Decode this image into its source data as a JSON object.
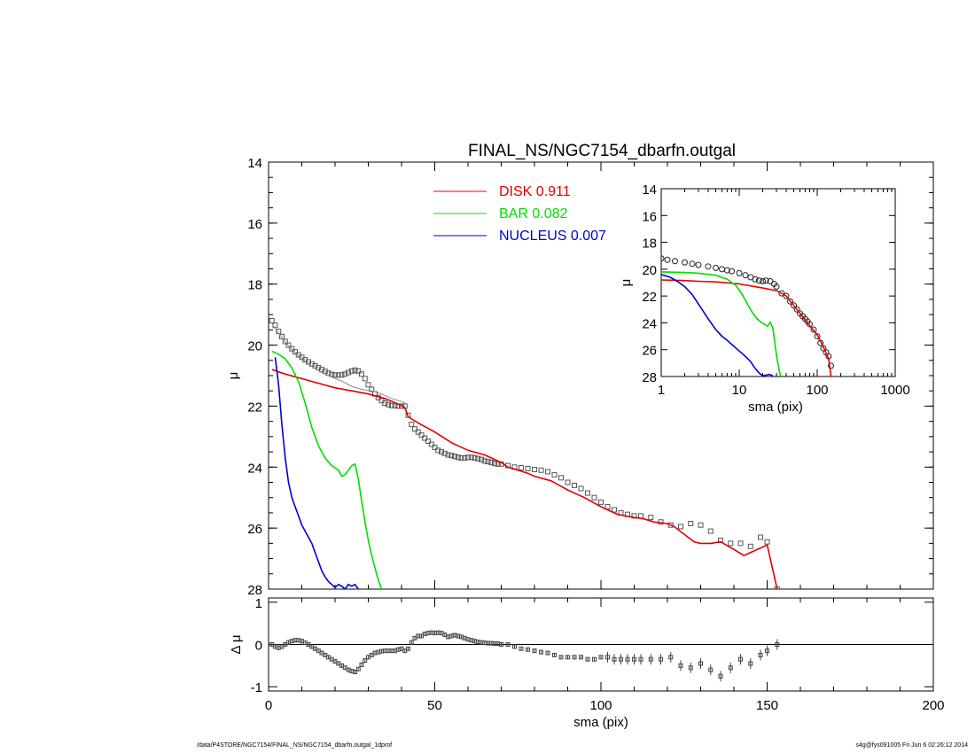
{
  "title": "FINAL_NS/NGC7154_dbarfn.outgal",
  "footer": {
    "left": "/data/P4STORE/NGC7154/FINAL_NS/NGC7154_dbarfn.outgal_1dprof",
    "right": "s4g@fys091005  Fri Jun  6 02:26:12 2014"
  },
  "legend": [
    {
      "label": "DISK",
      "value": "0.911",
      "color": "#e00000"
    },
    {
      "label": "BAR",
      "value": "0.082",
      "color": "#00dd00"
    },
    {
      "label": "NUCLEUS",
      "value": "0.007",
      "color": "#0000cc"
    }
  ],
  "chart_data": [
    {
      "name": "main-profile",
      "type": "line",
      "xlabel": "",
      "ylabel": "μ",
      "xlim": [
        0,
        200
      ],
      "ylim": [
        28,
        14
      ],
      "y_inverted": true,
      "xticks": [
        0,
        50,
        100,
        150,
        200
      ],
      "yticks": [
        14,
        16,
        18,
        20,
        22,
        24,
        26,
        28
      ],
      "series": [
        {
          "name": "data",
          "style": "squares",
          "color": "#555555",
          "x": [
            1,
            2,
            3,
            4,
            5,
            6,
            7,
            8,
            9,
            10,
            11,
            12,
            13,
            14,
            15,
            16,
            17,
            18,
            19,
            20,
            21,
            22,
            23,
            24,
            25,
            26,
            27,
            28,
            29,
            30,
            31,
            32,
            33,
            34,
            35,
            36,
            37,
            38,
            39,
            40,
            41,
            42,
            43,
            44,
            45,
            46,
            47,
            48,
            49,
            50,
            51,
            52,
            53,
            54,
            55,
            56,
            57,
            58,
            59,
            60,
            61,
            62,
            63,
            64,
            65,
            66,
            67,
            68,
            69,
            70,
            72,
            74,
            76,
            78,
            80,
            82,
            84,
            86,
            88,
            90,
            92,
            94,
            96,
            98,
            100,
            102,
            104,
            106,
            108,
            110,
            112,
            115,
            118,
            121,
            124,
            127,
            130,
            133,
            136,
            139,
            142,
            145,
            148,
            150,
            153
          ],
          "y": [
            19.2,
            19.35,
            19.55,
            19.72,
            19.88,
            20.0,
            20.12,
            20.22,
            20.32,
            20.4,
            20.48,
            20.55,
            20.62,
            20.68,
            20.74,
            20.8,
            20.86,
            20.92,
            20.96,
            20.98,
            20.98,
            20.98,
            20.95,
            20.9,
            20.85,
            20.82,
            20.85,
            20.95,
            21.1,
            21.3,
            21.45,
            21.6,
            21.72,
            21.82,
            21.9,
            21.95,
            21.98,
            21.99,
            22.0,
            22.0,
            22.0,
            22.3,
            22.6,
            22.75,
            22.85,
            22.95,
            23.05,
            23.15,
            23.25,
            23.35,
            23.45,
            23.5,
            23.55,
            23.6,
            23.62,
            23.65,
            23.68,
            23.7,
            23.7,
            23.68,
            23.68,
            23.7,
            23.72,
            23.75,
            23.8,
            23.82,
            23.85,
            23.88,
            23.9,
            23.9,
            23.95,
            24.0,
            24.02,
            24.05,
            24.08,
            24.1,
            24.15,
            24.25,
            24.35,
            24.5,
            24.6,
            24.7,
            24.85,
            25.0,
            25.15,
            25.3,
            25.4,
            25.5,
            25.55,
            25.6,
            25.6,
            25.65,
            25.8,
            25.9,
            25.95,
            25.85,
            25.9,
            26.1,
            26.4,
            26.5,
            26.5,
            26.6,
            26.3,
            26.45,
            28.0
          ]
        },
        {
          "name": "model",
          "style": "line",
          "color": "#888888",
          "x": [
            1,
            3,
            5,
            7,
            10,
            13,
            16,
            19,
            22,
            25,
            28,
            31,
            34,
            37,
            40,
            41
          ],
          "y": [
            19.3,
            19.6,
            19.9,
            20.15,
            20.45,
            20.7,
            20.9,
            21.05,
            21.18,
            21.35,
            21.45,
            21.5,
            21.6,
            21.75,
            21.85,
            21.9
          ]
        },
        {
          "name": "DISK",
          "style": "line",
          "color": "#e00000",
          "x": [
            1,
            5,
            10,
            15,
            20,
            25,
            30,
            35,
            40,
            41,
            42,
            45,
            50,
            55,
            60,
            65,
            70,
            72,
            75,
            78,
            80,
            85,
            90,
            95,
            100,
            105,
            110,
            113,
            116,
            120,
            122,
            125,
            128,
            130,
            133,
            136,
            140,
            143,
            146,
            150,
            153
          ],
          "y": [
            20.8,
            20.95,
            21.1,
            21.25,
            21.4,
            21.5,
            21.6,
            21.75,
            21.98,
            22.05,
            22.35,
            22.55,
            22.85,
            23.2,
            23.45,
            23.6,
            23.85,
            24.0,
            24.1,
            24.2,
            24.3,
            24.45,
            24.75,
            25.0,
            25.3,
            25.55,
            25.65,
            25.7,
            25.8,
            25.85,
            25.95,
            26.2,
            26.45,
            26.5,
            26.5,
            26.45,
            26.7,
            26.9,
            26.75,
            26.55,
            28.0
          ]
        },
        {
          "name": "BAR",
          "style": "line",
          "color": "#00dd00",
          "x": [
            1,
            3,
            5,
            7,
            9,
            11,
            13,
            15,
            17,
            19,
            21,
            22,
            23,
            24,
            25,
            26,
            27,
            28,
            29,
            30,
            31,
            32,
            33,
            34
          ],
          "y": [
            20.2,
            20.3,
            20.45,
            20.75,
            21.2,
            21.9,
            22.7,
            23.3,
            23.7,
            23.95,
            24.1,
            24.3,
            24.25,
            24.1,
            23.95,
            23.9,
            24.4,
            25.1,
            25.8,
            26.4,
            26.9,
            27.3,
            27.7,
            28.0
          ]
        },
        {
          "name": "NUCLEUS",
          "style": "line",
          "color": "#0000cc",
          "x": [
            2,
            3,
            4,
            5,
            6,
            7,
            8,
            9,
            10,
            11,
            12,
            13,
            14,
            15,
            16,
            17,
            18,
            19,
            20,
            21,
            22,
            23,
            24,
            25,
            26,
            27
          ],
          "y": [
            20.4,
            21.3,
            22.6,
            23.7,
            24.5,
            25.0,
            25.3,
            25.6,
            25.9,
            26.1,
            26.3,
            26.5,
            26.8,
            27.1,
            27.4,
            27.6,
            27.75,
            27.85,
            27.95,
            27.85,
            27.9,
            28.0,
            27.85,
            27.9,
            27.85,
            28.0
          ]
        }
      ]
    },
    {
      "name": "residual-panel",
      "type": "scatter",
      "xlabel": "sma (pix)",
      "ylabel": "Δ μ",
      "xlim": [
        0,
        200
      ],
      "ylim": [
        -1.1,
        1.1
      ],
      "xticks": [
        0,
        50,
        100,
        150,
        200
      ],
      "yticks": [
        -1,
        0,
        1
      ],
      "series": [
        {
          "name": "residual",
          "x": [
            1,
            2,
            3,
            4,
            5,
            6,
            7,
            8,
            9,
            10,
            11,
            12,
            13,
            14,
            15,
            16,
            17,
            18,
            19,
            20,
            21,
            22,
            23,
            24,
            25,
            26,
            27,
            28,
            29,
            30,
            31,
            32,
            33,
            34,
            35,
            36,
            37,
            38,
            39,
            40,
            41,
            42,
            43,
            44,
            45,
            46,
            47,
            48,
            49,
            50,
            51,
            52,
            53,
            54,
            55,
            56,
            57,
            58,
            59,
            60,
            61,
            62,
            63,
            64,
            65,
            66,
            67,
            68,
            69,
            70,
            72,
            74,
            76,
            78,
            80,
            82,
            84,
            86,
            88,
            90,
            92,
            94,
            96,
            98,
            100,
            102,
            104,
            106,
            108,
            110,
            112,
            115,
            118,
            121,
            124,
            127,
            130,
            133,
            136,
            139,
            142,
            145,
            148,
            150,
            153
          ],
          "y": [
            0.0,
            -0.05,
            -0.08,
            -0.05,
            0.0,
            0.05,
            0.08,
            0.1,
            0.1,
            0.08,
            0.04,
            0.0,
            -0.05,
            -0.1,
            -0.15,
            -0.2,
            -0.25,
            -0.3,
            -0.35,
            -0.4,
            -0.45,
            -0.5,
            -0.55,
            -0.6,
            -0.63,
            -0.65,
            -0.58,
            -0.48,
            -0.38,
            -0.3,
            -0.25,
            -0.2,
            -0.18,
            -0.16,
            -0.15,
            -0.15,
            -0.15,
            -0.15,
            -0.12,
            -0.1,
            -0.15,
            -0.1,
            0.05,
            0.15,
            0.2,
            0.2,
            0.25,
            0.27,
            0.28,
            0.27,
            0.28,
            0.27,
            0.23,
            0.18,
            0.2,
            0.22,
            0.2,
            0.18,
            0.15,
            0.12,
            0.1,
            0.08,
            0.06,
            0.05,
            0.04,
            0.03,
            0.03,
            0.02,
            0.02,
            0.0,
            0.0,
            -0.05,
            -0.1,
            -0.12,
            -0.15,
            -0.18,
            -0.2,
            -0.25,
            -0.3,
            -0.3,
            -0.3,
            -0.3,
            -0.35,
            -0.35,
            -0.3,
            -0.3,
            -0.35,
            -0.35,
            -0.35,
            -0.35,
            -0.35,
            -0.35,
            -0.35,
            -0.3,
            -0.5,
            -0.55,
            -0.45,
            -0.6,
            -0.75,
            -0.55,
            -0.35,
            -0.45,
            -0.25,
            -0.15,
            0.0
          ]
        }
      ]
    },
    {
      "name": "inset-log-profile",
      "type": "line",
      "xlabel": "sma (pix)",
      "ylabel": "μ",
      "x_scale": "log",
      "xlim": [
        1,
        1000
      ],
      "ylim": [
        28,
        14
      ],
      "y_inverted": true,
      "xtick_labels": [
        "1",
        "10",
        "100",
        "1000"
      ],
      "yticks": [
        14,
        16,
        18,
        20,
        22,
        24,
        26,
        28
      ],
      "series": [
        {
          "name": "data",
          "style": "circles",
          "color": "#222222",
          "x": [
            1,
            1.2,
            1.5,
            2,
            2.5,
            3,
            4,
            5,
            6,
            7,
            8,
            10,
            12,
            14,
            16,
            18,
            20,
            22,
            25,
            28,
            30,
            35,
            40,
            45,
            50,
            55,
            60,
            65,
            70,
            75,
            80,
            90,
            100,
            110,
            120,
            130,
            140,
            150
          ],
          "y": [
            19.2,
            19.3,
            19.4,
            19.5,
            19.6,
            19.68,
            19.8,
            19.9,
            20.0,
            20.08,
            20.15,
            20.3,
            20.45,
            20.6,
            20.75,
            20.85,
            20.9,
            20.85,
            20.9,
            21.1,
            21.3,
            21.8,
            22.0,
            22.4,
            22.7,
            23.0,
            23.3,
            23.5,
            23.7,
            23.9,
            24.1,
            24.5,
            25.0,
            25.5,
            25.9,
            26.2,
            26.5,
            27.2
          ]
        },
        {
          "name": "DISK",
          "style": "line",
          "color": "#e00000",
          "x": [
            1,
            2,
            3,
            5,
            10,
            20,
            30,
            40,
            60,
            80,
            100,
            120,
            140,
            150
          ],
          "y": [
            20.8,
            20.85,
            20.9,
            20.95,
            21.1,
            21.4,
            21.6,
            22.0,
            23.3,
            24.2,
            24.9,
            25.8,
            26.7,
            28.0
          ]
        },
        {
          "name": "BAR",
          "style": "line",
          "color": "#00dd00",
          "x": [
            1,
            2,
            3,
            5,
            7,
            9,
            11,
            13,
            15,
            17,
            19,
            21,
            23,
            25,
            27,
            29,
            31,
            33,
            34
          ],
          "y": [
            20.2,
            20.25,
            20.3,
            20.45,
            20.75,
            21.2,
            21.9,
            22.7,
            23.3,
            23.7,
            23.95,
            24.1,
            24.25,
            23.95,
            24.4,
            25.8,
            26.9,
            27.7,
            28.0
          ]
        },
        {
          "name": "NUCLEUS",
          "style": "line",
          "color": "#0000cc",
          "x": [
            1,
            1.3,
            1.6,
            2,
            2.5,
            3,
            4,
            5,
            6,
            7,
            8,
            10,
            12,
            14,
            16,
            18,
            20,
            22,
            24,
            26,
            27
          ],
          "y": [
            20.4,
            20.6,
            20.9,
            21.3,
            21.9,
            22.6,
            23.7,
            24.5,
            25.0,
            25.3,
            25.6,
            26.1,
            26.5,
            26.9,
            27.4,
            27.75,
            27.95,
            27.9,
            27.85,
            27.9,
            28.0
          ]
        }
      ]
    }
  ]
}
